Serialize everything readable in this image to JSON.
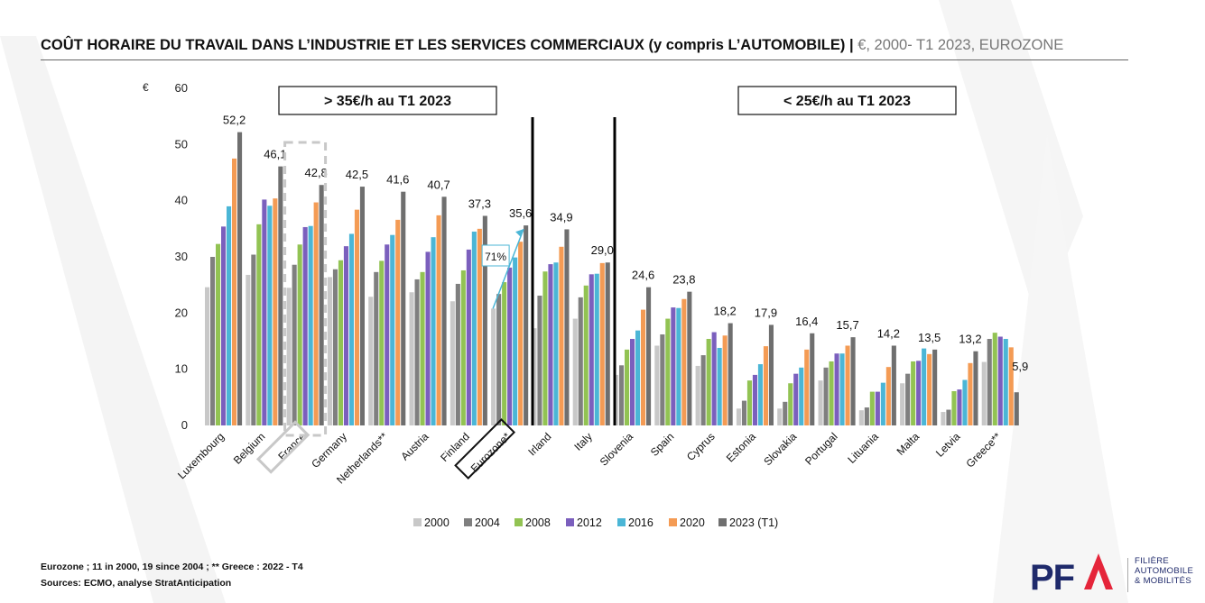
{
  "title": {
    "main": "COÛT HORAIRE DU TRAVAIL DANS L’INDUSTRIE ET LES SERVICES COMMERCIAUX (y compris L’AUTOMOBILE)",
    "separator": " | ",
    "sub": "€, 2000- T1 2023, EUROZONE"
  },
  "chart_data": {
    "type": "bar",
    "ylabel": "€",
    "ylim": [
      0,
      60
    ],
    "yticks": [
      0,
      10,
      20,
      30,
      40,
      50,
      60
    ],
    "categories": [
      "Luxembourg",
      "Belgium",
      "France",
      "Germany",
      "Netherlands**",
      "Austria",
      "Finland",
      "Eurozone*",
      "Irland",
      "Italy",
      "Slovenia",
      "Spain",
      "Cyprus",
      "Estonia",
      "Slovakia",
      "Portugal",
      "Lituania",
      "Malta",
      "Letvia",
      "Greece**"
    ],
    "series": [
      {
        "name": "2000",
        "color": "#c8c8c8",
        "values": [
          24.6,
          26.8,
          24.5,
          26.4,
          22.9,
          23.7,
          22.1,
          20.8,
          17.3,
          19.0,
          9.0,
          14.2,
          10.6,
          3.0,
          3.0,
          8.0,
          2.7,
          7.5,
          2.4,
          11.3
        ]
      },
      {
        "name": "2004",
        "color": "#7f7f7f",
        "values": [
          30.0,
          30.4,
          28.6,
          27.8,
          27.3,
          26.0,
          25.2,
          23.4,
          23.1,
          22.8,
          10.7,
          16.2,
          12.5,
          4.4,
          4.2,
          10.3,
          3.2,
          9.2,
          2.8,
          15.4
        ]
      },
      {
        "name": "2008",
        "color": "#92c353",
        "values": [
          32.3,
          35.8,
          32.2,
          29.4,
          29.3,
          27.3,
          27.6,
          25.5,
          27.4,
          24.9,
          13.5,
          19.0,
          15.4,
          8.0,
          7.5,
          11.4,
          6.0,
          11.4,
          6.1,
          16.5
        ]
      },
      {
        "name": "2012",
        "color": "#7b5fbd",
        "values": [
          35.4,
          40.2,
          35.3,
          31.9,
          32.2,
          30.9,
          31.3,
          28.1,
          28.7,
          26.9,
          15.4,
          21.0,
          16.6,
          9.0,
          9.2,
          12.8,
          6.0,
          11.5,
          6.4,
          15.8
        ]
      },
      {
        "name": "2016",
        "color": "#4bb6d6",
        "values": [
          39.0,
          39.1,
          35.5,
          34.1,
          33.9,
          33.5,
          34.5,
          29.9,
          29.0,
          27.0,
          16.9,
          20.9,
          13.8,
          10.9,
          10.3,
          12.8,
          7.6,
          13.7,
          8.1,
          15.4
        ]
      },
      {
        "name": "2020",
        "color": "#f49b54",
        "values": [
          47.5,
          40.4,
          39.7,
          38.4,
          36.6,
          37.4,
          35.0,
          32.7,
          31.8,
          28.9,
          20.6,
          22.5,
          16.0,
          14.1,
          13.5,
          14.2,
          10.4,
          12.7,
          11.1,
          13.9
        ]
      },
      {
        "name": "2023 (T1)",
        "color": "#6f6f6f",
        "values": [
          52.2,
          46.1,
          42.8,
          42.5,
          41.6,
          40.7,
          37.3,
          35.6,
          34.9,
          29.0,
          24.6,
          23.8,
          18.2,
          17.9,
          16.4,
          15.7,
          14.2,
          13.5,
          13.2,
          5.9
        ]
      }
    ],
    "data_labels": [
      "52,2",
      "46,1",
      "42,8",
      "42,5",
      "41,6",
      "40,7",
      "37,3",
      "35,6",
      "34,9",
      "29,0",
      "24,6",
      "23,8",
      "18,2",
      "17,9",
      "16,4",
      "15,7",
      "14,2",
      "13,5",
      "13,2",
      "5,9"
    ],
    "group_labels": [
      "> 35€/h au T1 2023",
      "< 25€/h au T1 2023"
    ],
    "annotation": "71%",
    "highlighted_categories": [
      "France",
      "Eurozone*"
    ],
    "legend_position": "bottom"
  },
  "footnotes": {
    "line1": "Eurozone ; 11 in 2000,  19 since 2004 ; ** Greece : 2022 - T4",
    "line2": "Sources: ECMO, analyse StratAnticipation"
  },
  "logo": {
    "mark": "PFA",
    "line1": "FILIÈRE",
    "line2": "AUTOMOBILE",
    "line3": "& MOBILITÉS",
    "mark_color": "#1f2a6b",
    "accent_color": "#e5253a"
  }
}
